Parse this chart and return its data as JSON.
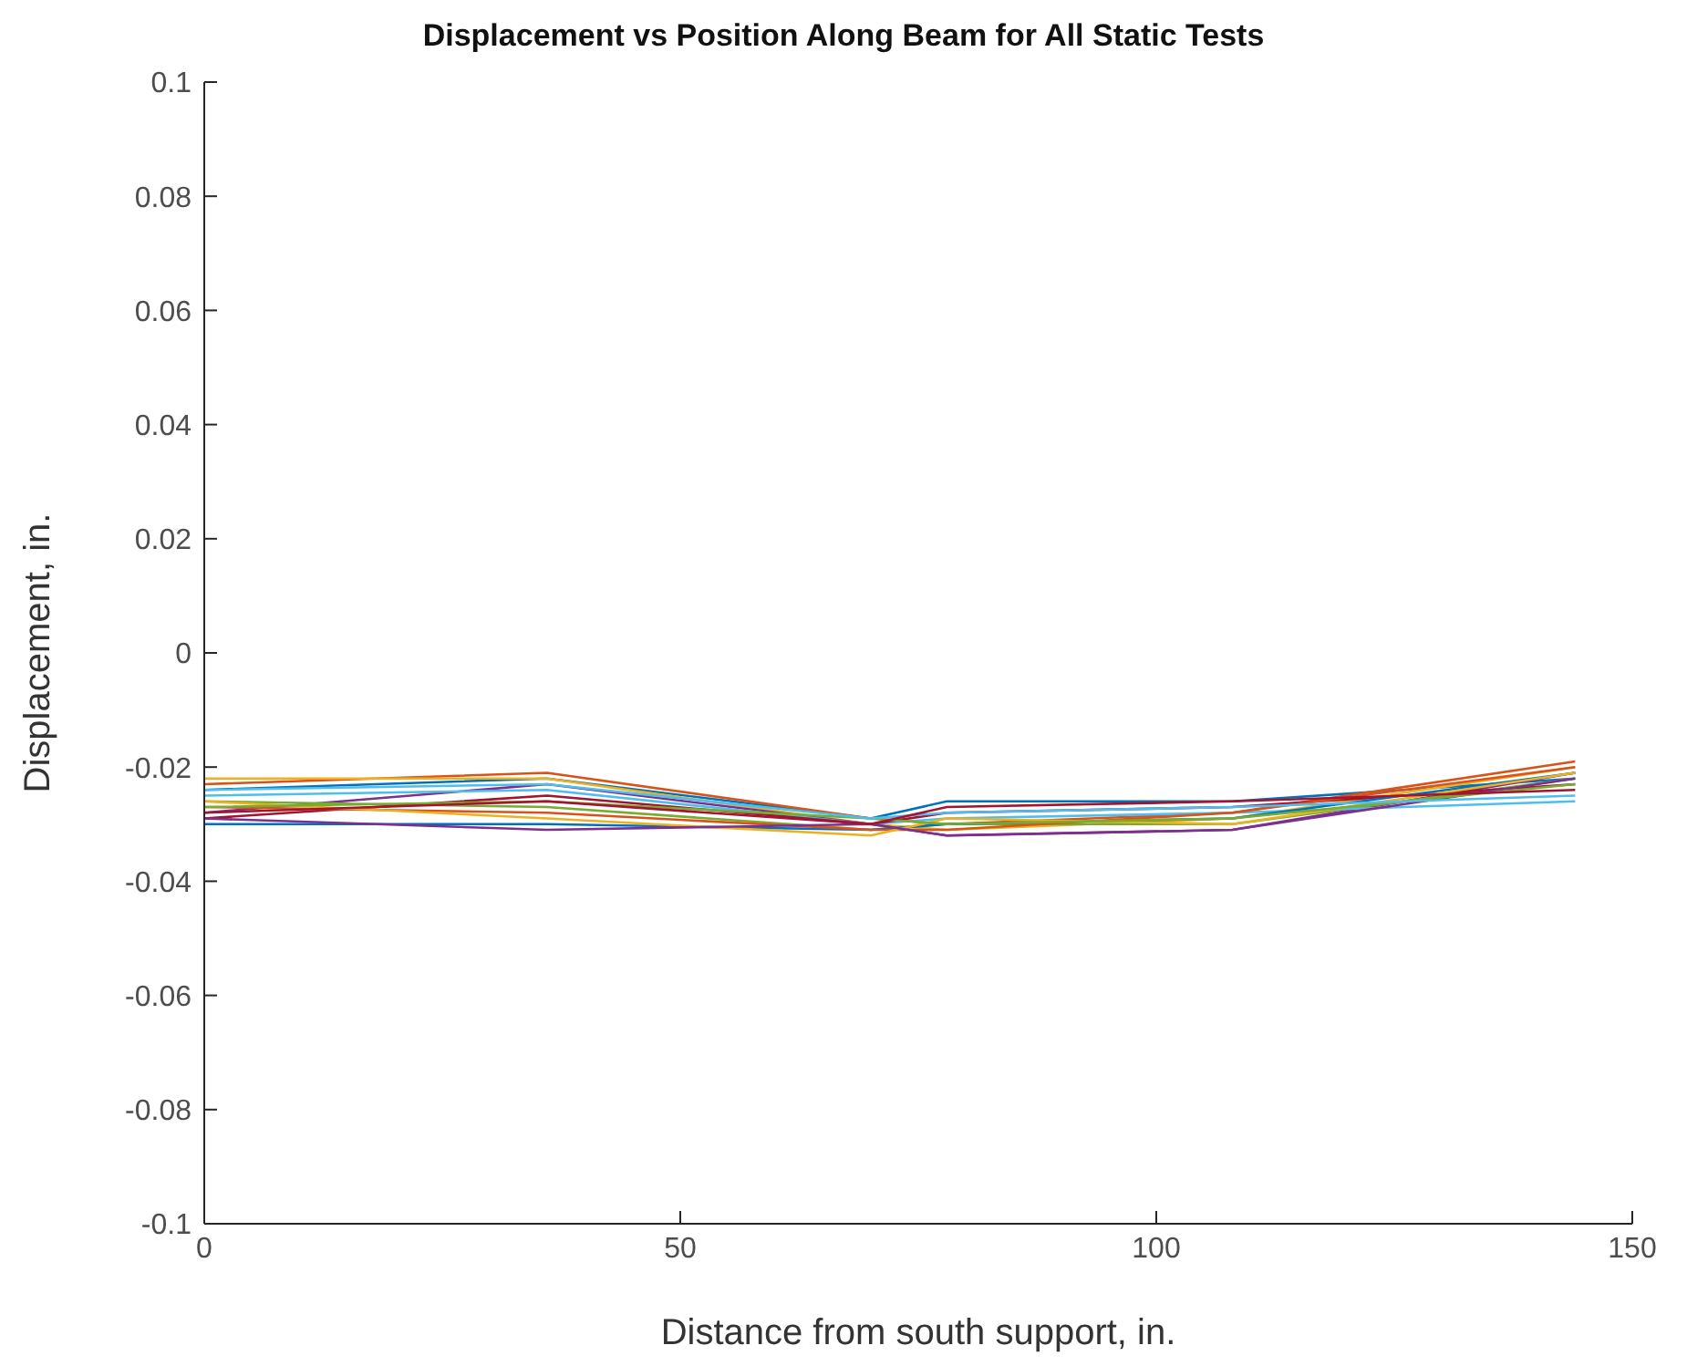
{
  "chart_data": {
    "type": "line",
    "title": "Displacement vs Position Along Beam for All Static Tests",
    "xlabel": "Distance from south support, in.",
    "ylabel": "Displacement, in.",
    "x": [
      0,
      36,
      70,
      78,
      108,
      144
    ],
    "series": [
      {
        "color": "#0072bd",
        "values": [
          -0.024,
          -0.022,
          -0.029,
          -0.026,
          -0.026,
          -0.022
        ]
      },
      {
        "color": "#d95319",
        "values": [
          -0.023,
          -0.021,
          -0.029,
          -0.03,
          -0.028,
          -0.019
        ]
      },
      {
        "color": "#edb120",
        "values": [
          -0.022,
          -0.022,
          -0.03,
          -0.031,
          -0.029,
          -0.02
        ]
      },
      {
        "color": "#7e2f8e",
        "values": [
          -0.028,
          -0.023,
          -0.03,
          -0.032,
          -0.031,
          -0.021
        ]
      },
      {
        "color": "#77ac30",
        "values": [
          -0.026,
          -0.027,
          -0.031,
          -0.03,
          -0.03,
          -0.022
        ]
      },
      {
        "color": "#4dbeee",
        "values": [
          -0.025,
          -0.024,
          -0.03,
          -0.029,
          -0.028,
          -0.026
        ]
      },
      {
        "color": "#a2142f",
        "values": [
          -0.029,
          -0.025,
          -0.03,
          -0.028,
          -0.027,
          -0.023
        ]
      },
      {
        "color": "#0072bd",
        "values": [
          -0.03,
          -0.03,
          -0.031,
          -0.03,
          -0.029,
          -0.021
        ]
      },
      {
        "color": "#d95319",
        "values": [
          -0.027,
          -0.028,
          -0.031,
          -0.031,
          -0.028,
          -0.02
        ]
      },
      {
        "color": "#edb120",
        "values": [
          -0.026,
          -0.029,
          -0.032,
          -0.029,
          -0.03,
          -0.021
        ]
      },
      {
        "color": "#7e2f8e",
        "values": [
          -0.029,
          -0.031,
          -0.03,
          -0.032,
          -0.031,
          -0.022
        ]
      },
      {
        "color": "#77ac30",
        "values": [
          -0.027,
          -0.026,
          -0.029,
          -0.03,
          -0.029,
          -0.023
        ]
      },
      {
        "color": "#4dbeee",
        "values": [
          -0.024,
          -0.023,
          -0.029,
          -0.028,
          -0.027,
          -0.025
        ]
      },
      {
        "color": "#a2142f",
        "values": [
          -0.028,
          -0.026,
          -0.03,
          -0.027,
          -0.026,
          -0.024
        ]
      }
    ],
    "xlim": [
      0,
      150
    ],
    "xticks": [
      0,
      50,
      100,
      150
    ],
    "ylim": [
      -0.1,
      0.1
    ],
    "yticks": [
      -0.1,
      -0.08,
      -0.06,
      -0.04,
      -0.02,
      0,
      0.02,
      0.04,
      0.06,
      0.08,
      0.1
    ],
    "grid": false,
    "legend": false
  }
}
